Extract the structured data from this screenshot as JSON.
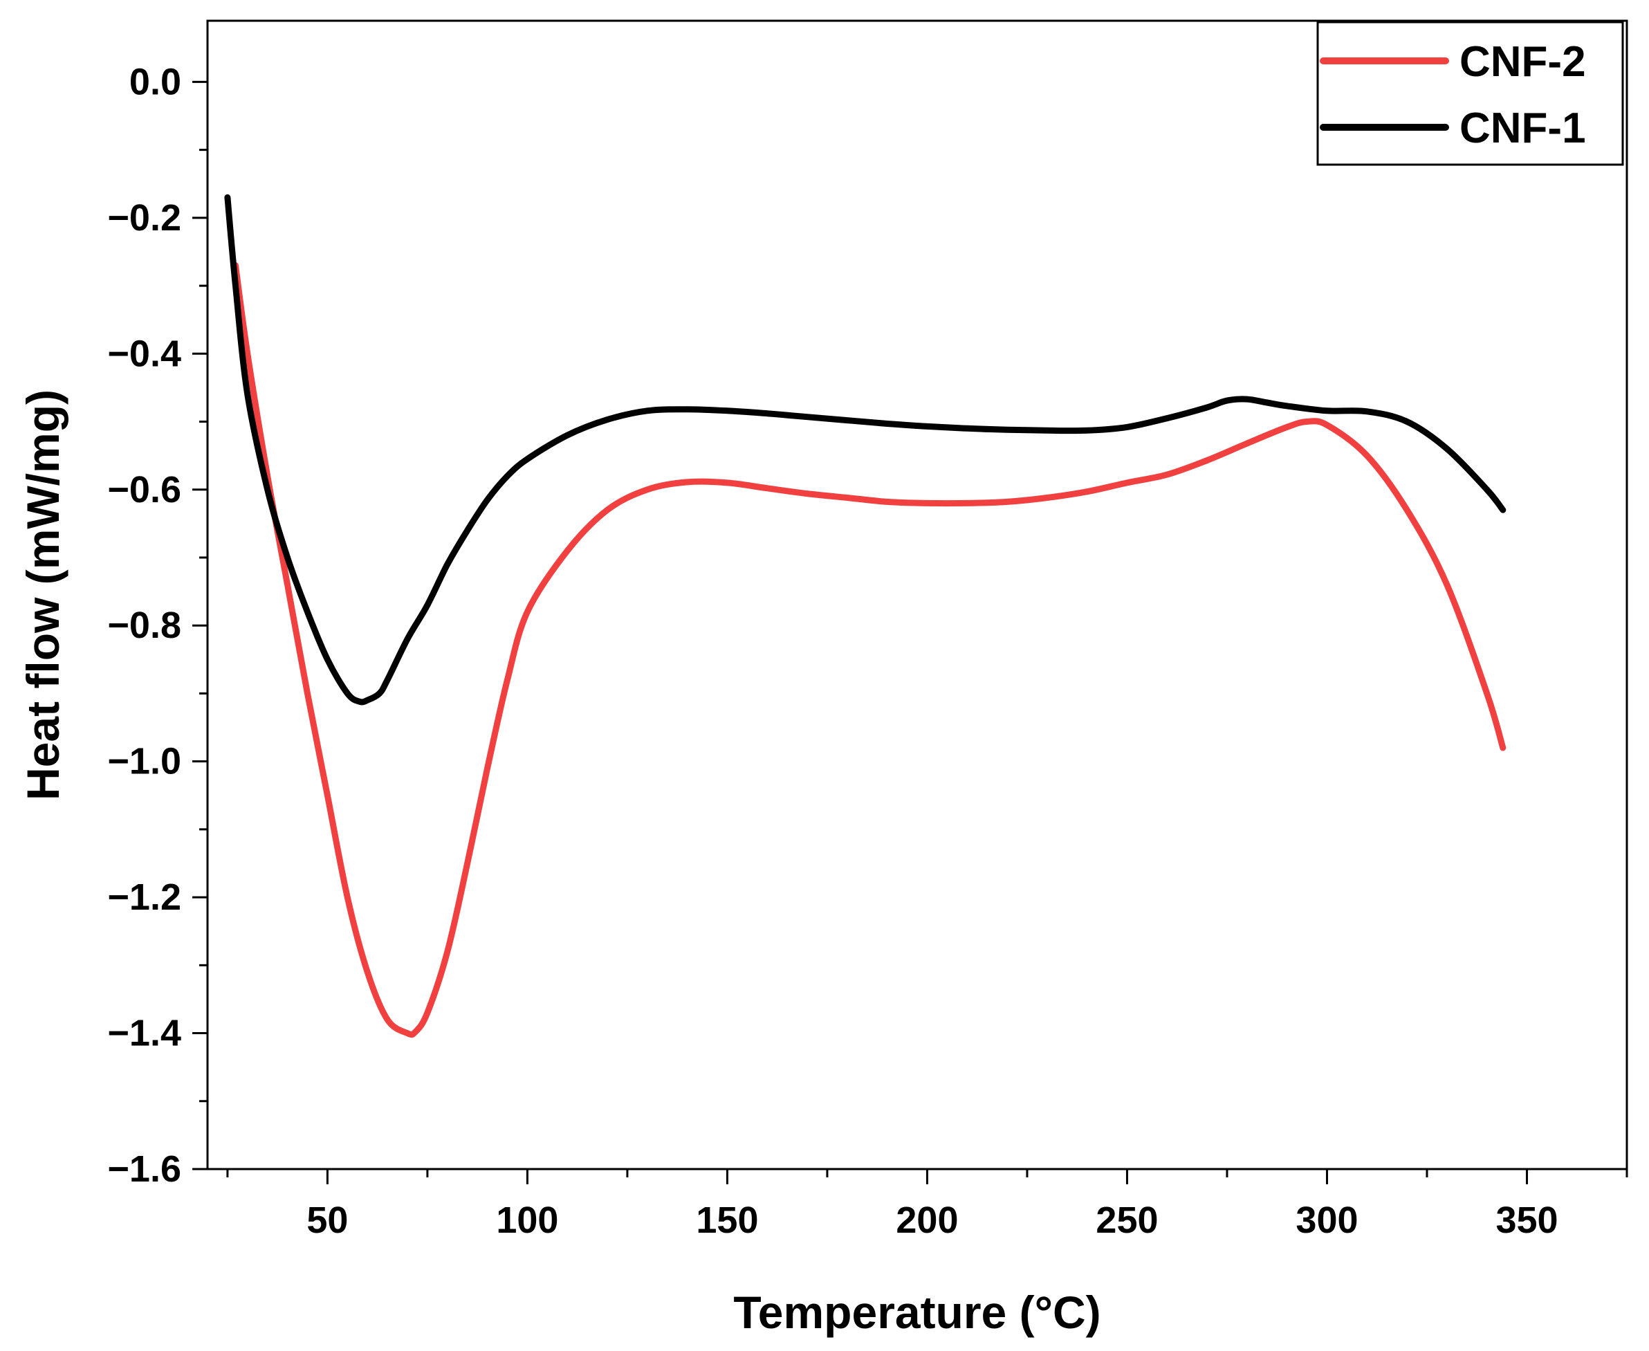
{
  "chart_data": {
    "type": "line",
    "title": "",
    "xlabel": "Temperature (°C)",
    "ylabel": "Heat flow (mW/mg)",
    "xlim": [
      20,
      375
    ],
    "ylim": [
      -1.6,
      0.09
    ],
    "xticks": [
      50,
      100,
      150,
      200,
      250,
      300,
      350
    ],
    "xtick_labels": [
      "50",
      "100",
      "150",
      "200",
      "250",
      "300",
      "350"
    ],
    "yticks": [
      0.0,
      -0.2,
      -0.4,
      -0.6,
      -0.8,
      -1.0,
      -1.2,
      -1.4,
      -1.6
    ],
    "ytick_labels": [
      "0.0",
      "−0.2",
      "−0.4",
      "−0.6",
      "−0.8",
      "−1.0",
      "−1.2",
      "−1.4",
      "−1.6"
    ],
    "legend_position": "top-right",
    "series": [
      {
        "name": "CNF-2",
        "color": "#f04040",
        "x": [
          27,
          30,
          35,
          40,
          45,
          50,
          55,
          60,
          65,
          70,
          72,
          75,
          80,
          85,
          90,
          95,
          100,
          110,
          120,
          130,
          140,
          150,
          160,
          170,
          180,
          190,
          200,
          210,
          220,
          230,
          240,
          250,
          260,
          270,
          280,
          290,
          295,
          300,
          310,
          320,
          330,
          340,
          344
        ],
        "y": [
          -0.27,
          -0.4,
          -0.58,
          -0.74,
          -0.9,
          -1.05,
          -1.2,
          -1.31,
          -1.38,
          -1.4,
          -1.398,
          -1.37,
          -1.28,
          -1.15,
          -1.01,
          -0.88,
          -0.78,
          -0.69,
          -0.63,
          -0.6,
          -0.589,
          -0.59,
          -0.598,
          -0.606,
          -0.612,
          -0.618,
          -0.62,
          -0.62,
          -0.618,
          -0.612,
          -0.603,
          -0.59,
          -0.578,
          -0.557,
          -0.532,
          -0.508,
          -0.5,
          -0.505,
          -0.55,
          -0.63,
          -0.74,
          -0.9,
          -0.98
        ]
      },
      {
        "name": "CNF-1",
        "color": "#000000",
        "x": [
          25,
          27,
          30,
          35,
          40,
          45,
          50,
          55,
          58,
          60,
          63,
          65,
          70,
          75,
          80,
          85,
          90,
          95,
          100,
          110,
          120,
          130,
          140,
          150,
          160,
          170,
          180,
          190,
          200,
          210,
          220,
          230,
          240,
          250,
          260,
          270,
          275,
          280,
          285,
          290,
          300,
          310,
          320,
          330,
          340,
          344
        ],
        "y": [
          -0.17,
          -0.3,
          -0.46,
          -0.6,
          -0.7,
          -0.78,
          -0.85,
          -0.9,
          -0.912,
          -0.91,
          -0.9,
          -0.88,
          -0.82,
          -0.77,
          -0.71,
          -0.66,
          -0.615,
          -0.58,
          -0.555,
          -0.52,
          -0.497,
          -0.484,
          -0.482,
          -0.484,
          -0.488,
          -0.493,
          -0.498,
          -0.503,
          -0.507,
          -0.51,
          -0.512,
          -0.513,
          -0.513,
          -0.508,
          -0.495,
          -0.479,
          -0.469,
          -0.467,
          -0.472,
          -0.477,
          -0.484,
          -0.485,
          -0.5,
          -0.54,
          -0.6,
          -0.63
        ]
      }
    ]
  }
}
